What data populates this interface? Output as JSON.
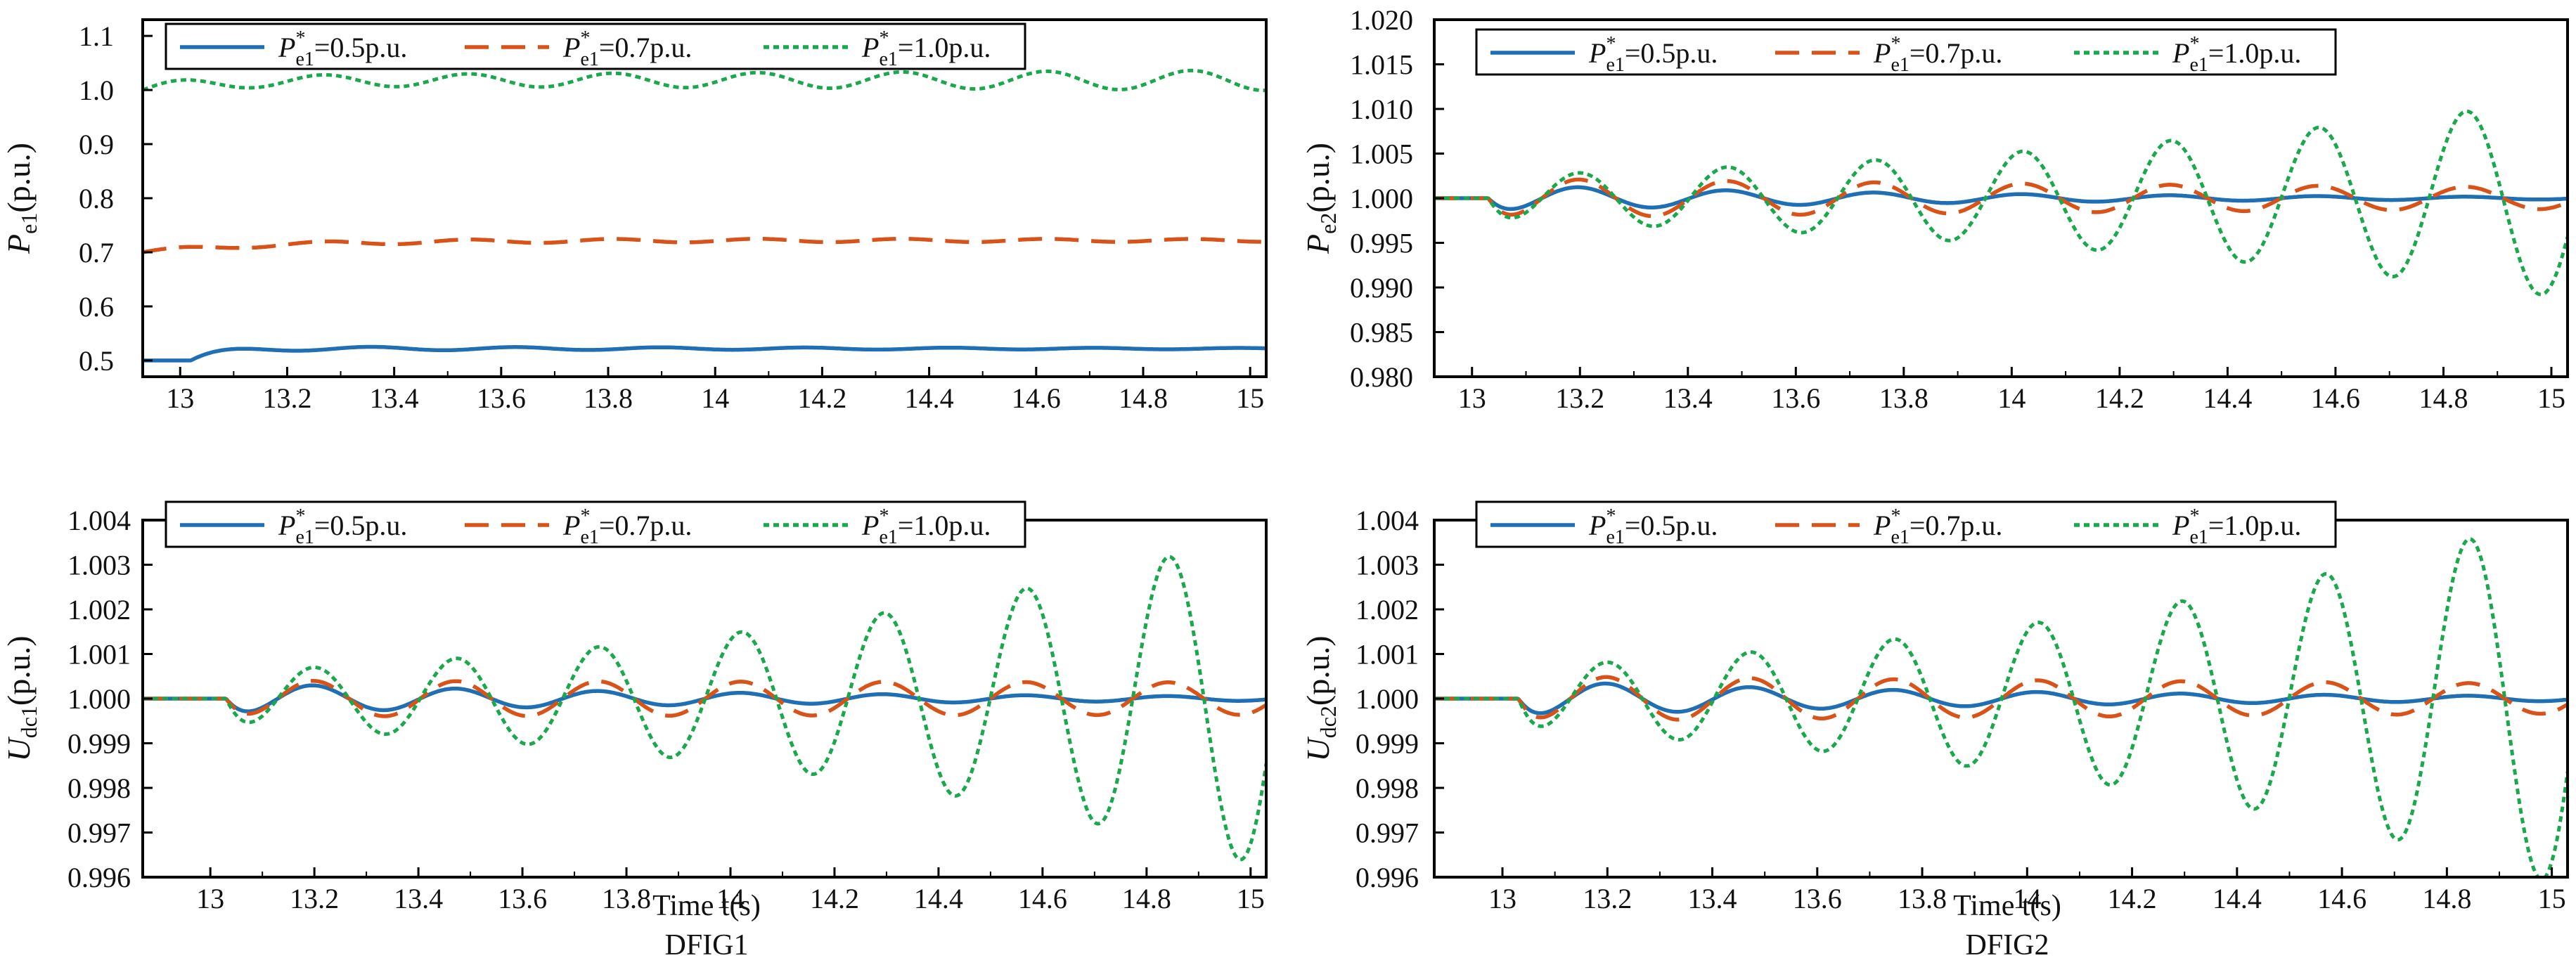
{
  "figure": {
    "xlabel": "Time t(s)",
    "captions": [
      "DFIG1",
      "DFIG2"
    ]
  },
  "colors": {
    "s05": "#1f6fb4",
    "s07": "#d95319",
    "s10": "#19a84b"
  },
  "legend_labels": [
    {
      "sym": "P",
      "sup": "*",
      "sub": "e1",
      "text": "=0.5p.u."
    },
    {
      "sym": "P",
      "sup": "*",
      "sub": "e1",
      "text": "=0.7p.u."
    },
    {
      "sym": "P",
      "sup": "*",
      "sub": "e1",
      "text": "=1.0p.u."
    }
  ],
  "chart_data": [
    {
      "id": "pe1",
      "type": "line",
      "ylabel": {
        "sym": "P",
        "sub": "e1",
        "unit": "(p.u.)"
      },
      "xlim": [
        12.93,
        15.03
      ],
      "ylim": [
        0.47,
        1.13
      ],
      "xticks": [
        "13",
        "13.2",
        "13.4",
        "13.6",
        "13.8",
        "14",
        "14.2",
        "14.4",
        "14.6",
        "14.8",
        "15"
      ],
      "yticks": [
        "0.5",
        "0.6",
        "0.7",
        "0.8",
        "0.9",
        "1.0",
        "1.1"
      ],
      "series": [
        {
          "name": "P*e1=0.5p.u.",
          "model": {
            "kind": "step_osc",
            "base": 0.5,
            "final": 0.522,
            "t0": 13.02,
            "rise": 0.05,
            "amp": 0.004,
            "freq": 3.7,
            "decay": 0.6
          }
        },
        {
          "name": "P*e1=0.7p.u.",
          "model": {
            "kind": "step_osc",
            "base": 0.7,
            "final": 0.722,
            "t0": 12.93,
            "rise": 0.25,
            "amp": 0.004,
            "freq": 3.7,
            "decay": 0.2
          }
        },
        {
          "name": "P*e1=1.0p.u.",
          "model": {
            "kind": "step_osc",
            "base": 1.0,
            "final": 1.018,
            "t0": 12.93,
            "rise": 0.12,
            "amp": 0.01,
            "freq": 3.7,
            "decay": -0.3
          }
        }
      ]
    },
    {
      "id": "pe2",
      "type": "line",
      "ylabel": {
        "sym": "P",
        "sub": "e2",
        "unit": "(p.u.)"
      },
      "xlim": [
        12.93,
        15.03
      ],
      "ylim": [
        0.98,
        1.02
      ],
      "xticks": [
        "13",
        "13.2",
        "13.4",
        "13.6",
        "13.8",
        "14",
        "14.2",
        "14.4",
        "14.6",
        "14.8",
        "15"
      ],
      "yticks": [
        "0.980",
        "0.985",
        "0.990",
        "0.995",
        "1.000",
        "1.005",
        "1.010",
        "1.015",
        "1.020"
      ],
      "series": [
        {
          "name": "P*e1=0.5p.u.",
          "model": {
            "kind": "osc",
            "base": 1.0,
            "t0": 13.03,
            "amp": 0.0015,
            "freq": 3.65,
            "grow": -1.2,
            "phase": 4.0
          }
        },
        {
          "name": "P*e1=0.7p.u.",
          "model": {
            "kind": "osc",
            "base": 1.0,
            "t0": 13.03,
            "amp": 0.0022,
            "freq": 3.65,
            "grow": -0.3,
            "phase": 4.0
          }
        },
        {
          "name": "P*e1=1.0p.u.",
          "model": {
            "kind": "osc",
            "base": 1.0,
            "t0": 13.03,
            "amp": 0.0025,
            "freq": 3.65,
            "grow": 0.75,
            "phase": 4.0
          }
        }
      ]
    },
    {
      "id": "udc1",
      "type": "line",
      "ylabel": {
        "sym": "U",
        "sub": "dc1",
        "unit": "(p.u.)"
      },
      "xlim": [
        12.87,
        15.03
      ],
      "ylim": [
        0.996,
        1.004
      ],
      "xticks": [
        "13",
        "13.2",
        "13.4",
        "13.6",
        "13.8",
        "14",
        "14.2",
        "14.4",
        "14.6",
        "14.8",
        "15"
      ],
      "yticks": [
        "0.996",
        "0.997",
        "0.998",
        "0.999",
        "1.000",
        "1.001",
        "1.002",
        "1.003",
        "1.004"
      ],
      "series": [
        {
          "name": "P*e1=0.5p.u.",
          "model": {
            "kind": "osc",
            "base": 1.0,
            "t0": 13.03,
            "amp": 0.00035,
            "freq": 3.65,
            "grow": -1.0,
            "phase": 4.0
          }
        },
        {
          "name": "P*e1=0.7p.u.",
          "model": {
            "kind": "osc",
            "base": 1.0,
            "t0": 13.03,
            "amp": 0.0004,
            "freq": 3.65,
            "grow": -0.05,
            "phase": 4.0
          }
        },
        {
          "name": "P*e1=1.0p.u.",
          "model": {
            "kind": "osc",
            "base": 1.0,
            "t0": 13.03,
            "amp": 0.0006,
            "freq": 3.65,
            "grow": 0.92,
            "phase": 4.0
          }
        }
      ]
    },
    {
      "id": "udc2",
      "type": "line",
      "ylabel": {
        "sym": "U",
        "sub": "dc2",
        "unit": "(p.u.)"
      },
      "xlim": [
        12.87,
        15.03
      ],
      "ylim": [
        0.996,
        1.004
      ],
      "xticks": [
        "13",
        "13.2",
        "13.4",
        "13.6",
        "13.8",
        "14",
        "14.2",
        "14.4",
        "14.6",
        "14.8",
        "15"
      ],
      "yticks": [
        "0.996",
        "0.997",
        "0.998",
        "0.999",
        "1.000",
        "1.001",
        "1.002",
        "1.003",
        "1.004"
      ],
      "series": [
        {
          "name": "P*e1=0.5p.u.",
          "model": {
            "kind": "osc",
            "base": 1.0,
            "t0": 13.03,
            "amp": 0.0004,
            "freq": 3.65,
            "grow": -1.0,
            "phase": 4.0
          }
        },
        {
          "name": "P*e1=0.7p.u.",
          "model": {
            "kind": "osc",
            "base": 1.0,
            "t0": 13.03,
            "amp": 0.0005,
            "freq": 3.65,
            "grow": -0.2,
            "phase": 4.0
          }
        },
        {
          "name": "P*e1=1.0p.u.",
          "model": {
            "kind": "osc",
            "base": 1.0,
            "t0": 13.03,
            "amp": 0.0007,
            "freq": 3.65,
            "grow": 0.9,
            "phase": 4.0
          }
        }
      ]
    }
  ]
}
